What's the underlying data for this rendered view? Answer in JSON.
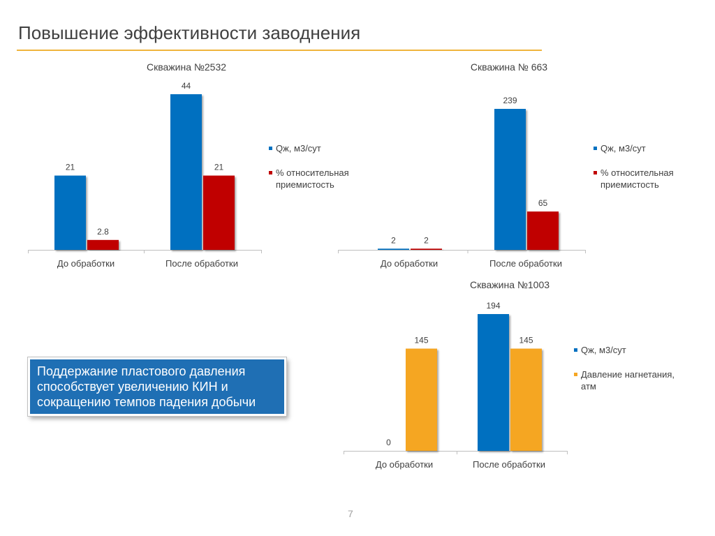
{
  "page": {
    "title": "Повышение эффективности заводнения",
    "callout": "Поддержание пластового давления способствует увеличению КИН и сокращению темпов падения добычи",
    "page_number": "7"
  },
  "colors": {
    "blue": "#0070c0",
    "red": "#c00000",
    "orange": "#f5a623",
    "rule": "#f0b43c",
    "callout_bg": "#1f6fb4"
  },
  "chart_data": [
    {
      "type": "bar",
      "title": "Скважина №2532",
      "categories": [
        "До обработки",
        "После обработки"
      ],
      "series": [
        {
          "name": "Qж, м3/сут",
          "color": "#0070c0",
          "values": [
            21,
            44
          ],
          "labels": [
            "21",
            "44"
          ]
        },
        {
          "name": "% относительная приемистость",
          "color": "#c00000",
          "values": [
            2.8,
            21
          ],
          "labels": [
            "2.8",
            "21"
          ]
        }
      ],
      "ylim": [
        0,
        44
      ],
      "grid": false,
      "legend": "right"
    },
    {
      "type": "bar",
      "title": "Скважина № 663",
      "categories": [
        "До обработки",
        "После обработки"
      ],
      "series": [
        {
          "name": "Qж, м3/сут",
          "color": "#0070c0",
          "values": [
            2,
            239
          ],
          "labels": [
            "2",
            "239"
          ]
        },
        {
          "name": "% относительная приемистость",
          "color": "#c00000",
          "values": [
            2,
            65
          ],
          "labels": [
            "2",
            "65"
          ]
        }
      ],
      "ylim": [
        0,
        239
      ],
      "grid": false,
      "legend": "right"
    },
    {
      "type": "bar",
      "title": "Скважина №1003",
      "categories": [
        "До обработки",
        "После обработки"
      ],
      "series": [
        {
          "name": "Qж, м3/сут",
          "color": "#0070c0",
          "values": [
            0,
            194
          ],
          "labels": [
            "0",
            "194"
          ]
        },
        {
          "name": "Давление нагнетания, атм",
          "color": "#f5a623",
          "values": [
            145,
            145
          ],
          "labels": [
            "145",
            "145"
          ]
        }
      ],
      "ylim": [
        0,
        194
      ],
      "grid": false,
      "legend": "right"
    }
  ]
}
